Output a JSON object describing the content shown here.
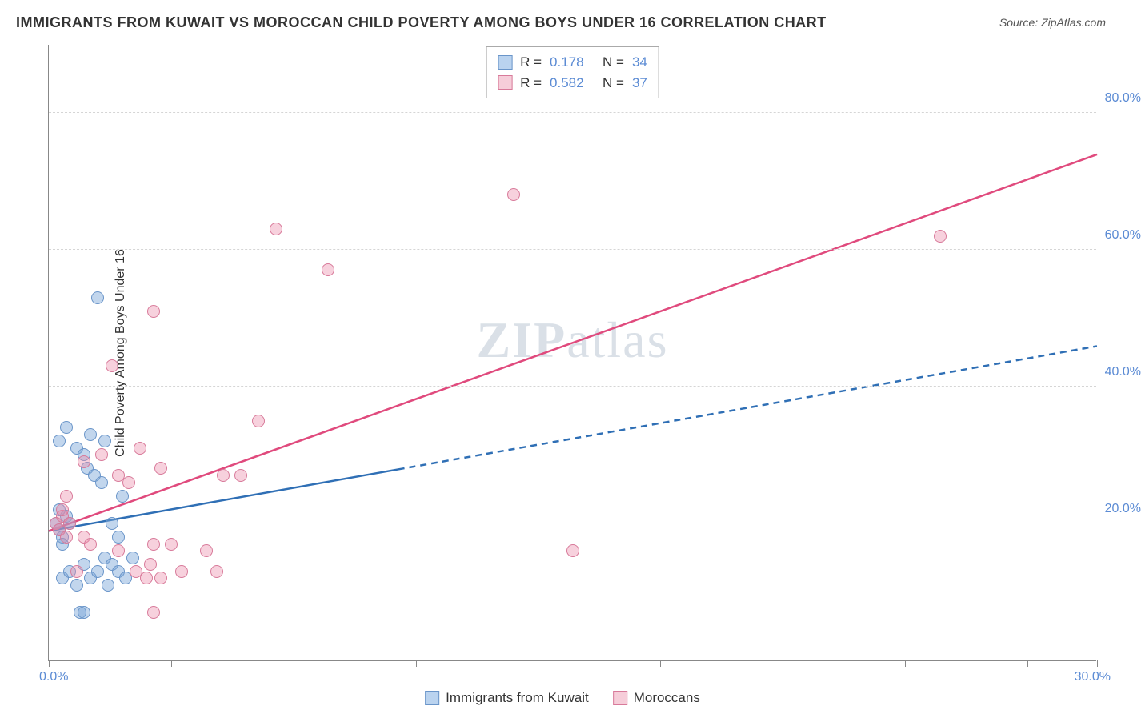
{
  "title": "IMMIGRANTS FROM KUWAIT VS MOROCCAN CHILD POVERTY AMONG BOYS UNDER 16 CORRELATION CHART",
  "source_prefix": "Source: ",
  "source_name": "ZipAtlas.com",
  "y_axis_title": "Child Poverty Among Boys Under 16",
  "watermark_bold": "ZIP",
  "watermark_rest": "atlas",
  "chart": {
    "type": "scatter",
    "background_color": "#ffffff",
    "grid_color": "#d5d5d5",
    "axis_color": "#888888",
    "xlim": [
      0,
      30
    ],
    "ylim": [
      0,
      90
    ],
    "x_tick_positions": [
      0,
      3.5,
      7,
      10.5,
      14,
      17.5,
      21,
      24.5,
      28,
      30
    ],
    "x_tick_labels": {
      "0": "0.0%",
      "30": "30.0%"
    },
    "y_gridlines": [
      20,
      40,
      60,
      80
    ],
    "y_tick_labels": {
      "20": "20.0%",
      "40": "40.0%",
      "60": "60.0%",
      "80": "80.0%"
    },
    "axis_label_color": "#5b8bd4",
    "axis_label_fontsize": 16,
    "title_fontsize": 18,
    "marker_radius": 8,
    "marker_border_width": 1.5,
    "series": [
      {
        "id": "kuwait",
        "label": "Immigrants from Kuwait",
        "fill_color": "rgba(120,165,216,0.45)",
        "border_color": "#6a95c9",
        "swatch_fill": "#bad3ef",
        "swatch_border": "#6a95c9",
        "r_value": "0.178",
        "n_value": "34",
        "trend_color": "#2f6fb5",
        "trend_width": 2.5,
        "trend_solid": {
          "x1": 0,
          "y1": 19,
          "x2": 10,
          "y2": 28
        },
        "trend_dashed": {
          "x1": 10,
          "y1": 28,
          "x2": 30,
          "y2": 46
        },
        "points": [
          [
            0.2,
            20
          ],
          [
            0.3,
            19
          ],
          [
            0.4,
            18
          ],
          [
            0.5,
            21
          ],
          [
            0.3,
            22
          ],
          [
            0.4,
            17
          ],
          [
            0.6,
            20
          ],
          [
            0.3,
            32
          ],
          [
            0.5,
            34
          ],
          [
            0.8,
            31
          ],
          [
            1.0,
            30
          ],
          [
            1.2,
            33
          ],
          [
            1.1,
            28
          ],
          [
            1.3,
            27
          ],
          [
            1.5,
            26
          ],
          [
            0.4,
            12
          ],
          [
            0.6,
            13
          ],
          [
            0.8,
            11
          ],
          [
            1.0,
            14
          ],
          [
            1.2,
            12
          ],
          [
            1.4,
            13
          ],
          [
            1.6,
            15
          ],
          [
            1.8,
            14
          ],
          [
            2.0,
            13
          ],
          [
            2.2,
            12
          ],
          [
            0.9,
            7
          ],
          [
            1.0,
            7
          ],
          [
            2.1,
            24
          ],
          [
            1.8,
            20
          ],
          [
            1.6,
            32
          ],
          [
            2.0,
            18
          ],
          [
            1.4,
            53
          ],
          [
            1.7,
            11
          ],
          [
            2.4,
            15
          ]
        ]
      },
      {
        "id": "moroccans",
        "label": "Moroccans",
        "fill_color": "rgba(236,140,170,0.40)",
        "border_color": "#d87a9a",
        "swatch_fill": "#f6cdd9",
        "swatch_border": "#d87a9a",
        "r_value": "0.582",
        "n_value": "37",
        "trend_color": "#e04a7d",
        "trend_width": 2.5,
        "trend_solid": {
          "x1": 0,
          "y1": 19,
          "x2": 30,
          "y2": 74
        },
        "trend_dashed": null,
        "points": [
          [
            0.2,
            20
          ],
          [
            0.3,
            19
          ],
          [
            0.4,
            21
          ],
          [
            0.5,
            18
          ],
          [
            0.6,
            20
          ],
          [
            0.4,
            22
          ],
          [
            0.5,
            24
          ],
          [
            1.0,
            29
          ],
          [
            1.5,
            30
          ],
          [
            2.0,
            27
          ],
          [
            2.3,
            26
          ],
          [
            2.6,
            31
          ],
          [
            3.2,
            28
          ],
          [
            0.8,
            13
          ],
          [
            1.0,
            18
          ],
          [
            1.2,
            17
          ],
          [
            2.0,
            16
          ],
          [
            2.5,
            13
          ],
          [
            2.8,
            12
          ],
          [
            3.0,
            17
          ],
          [
            3.2,
            12
          ],
          [
            3.5,
            17
          ],
          [
            3.8,
            13
          ],
          [
            4.5,
            16
          ],
          [
            4.8,
            13
          ],
          [
            1.8,
            43
          ],
          [
            2.9,
            14
          ],
          [
            3.0,
            7
          ],
          [
            3.0,
            51
          ],
          [
            5.0,
            27
          ],
          [
            5.5,
            27
          ],
          [
            6.0,
            35
          ],
          [
            6.5,
            63
          ],
          [
            8.0,
            57
          ],
          [
            13.3,
            68
          ],
          [
            15.0,
            16
          ],
          [
            25.5,
            62
          ]
        ]
      }
    ]
  },
  "legend": {
    "r_label": "R",
    "n_label": "N",
    "equals": "="
  }
}
